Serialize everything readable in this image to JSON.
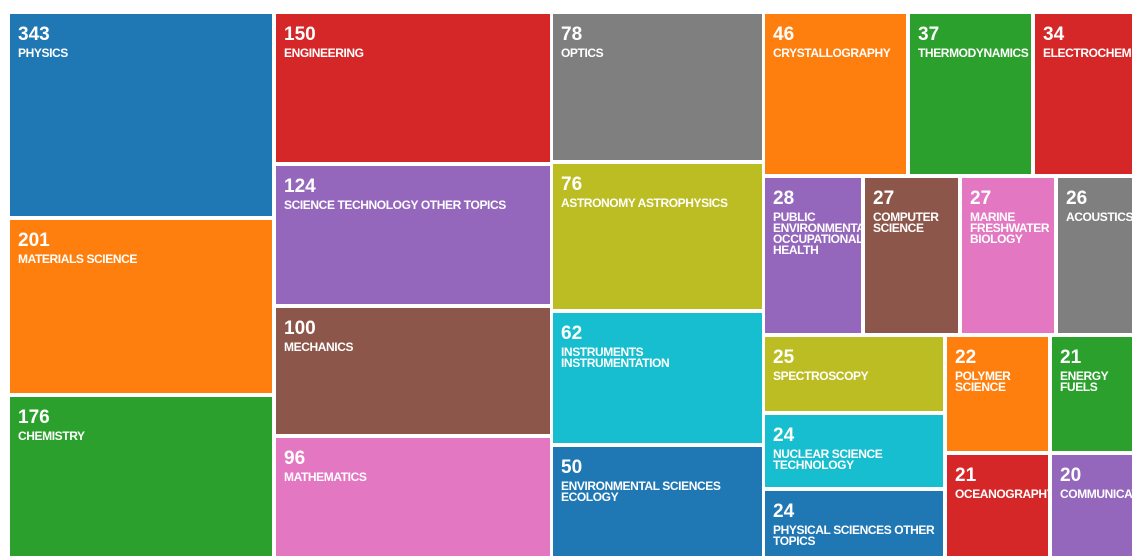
{
  "chart_data": {
    "type": "treemap",
    "categories": [
      "PHYSICS",
      "MATERIALS SCIENCE",
      "CHEMISTRY",
      "ENGINEERING",
      "SCIENCE TECHNOLOGY OTHER TOPICS",
      "MECHANICS",
      "MATHEMATICS",
      "OPTICS",
      "ASTRONOMY ASTROPHYSICS",
      "INSTRUMENTS INSTRUMENTATION",
      "ENVIRONMENTAL SCIENCES ECOLOGY",
      "CRYSTALLOGRAPHY",
      "THERMODYNAMICS",
      "ELECTROCHEMISTRY",
      "PUBLIC ENVIRONMENTAL OCCUPATIONAL HEALTH",
      "COMPUTER SCIENCE",
      "MARINE FRESHWATER BIOLOGY",
      "ACOUSTICS",
      "SPECTROSCOPY",
      "NUCLEAR SCIENCE TECHNOLOGY",
      "PHYSICAL SCIENCES OTHER TOPICS",
      "POLYMER SCIENCE",
      "ENERGY FUELS",
      "OCEANOGRAPHY",
      "COMMUNICATION"
    ],
    "values": [
      343,
      201,
      176,
      150,
      124,
      100,
      96,
      78,
      76,
      62,
      50,
      46,
      37,
      34,
      28,
      27,
      27,
      26,
      25,
      24,
      24,
      22,
      21,
      21,
      20
    ],
    "colors": [
      "#1f77b4",
      "#ff7f0e",
      "#2ca02c",
      "#d62728",
      "#9467bd",
      "#8c564b",
      "#e377c2",
      "#7f7f7f",
      "#bcbd22",
      "#17becf",
      "#1f77b4",
      "#ff7f0e",
      "#2ca02c",
      "#d62728",
      "#9467bd",
      "#8c564b",
      "#e377c2",
      "#7f7f7f",
      "#bcbd22",
      "#17becf",
      "#1f77b4",
      "#ff7f0e",
      "#2ca02c",
      "#d62728",
      "#9467bd"
    ]
  }
}
